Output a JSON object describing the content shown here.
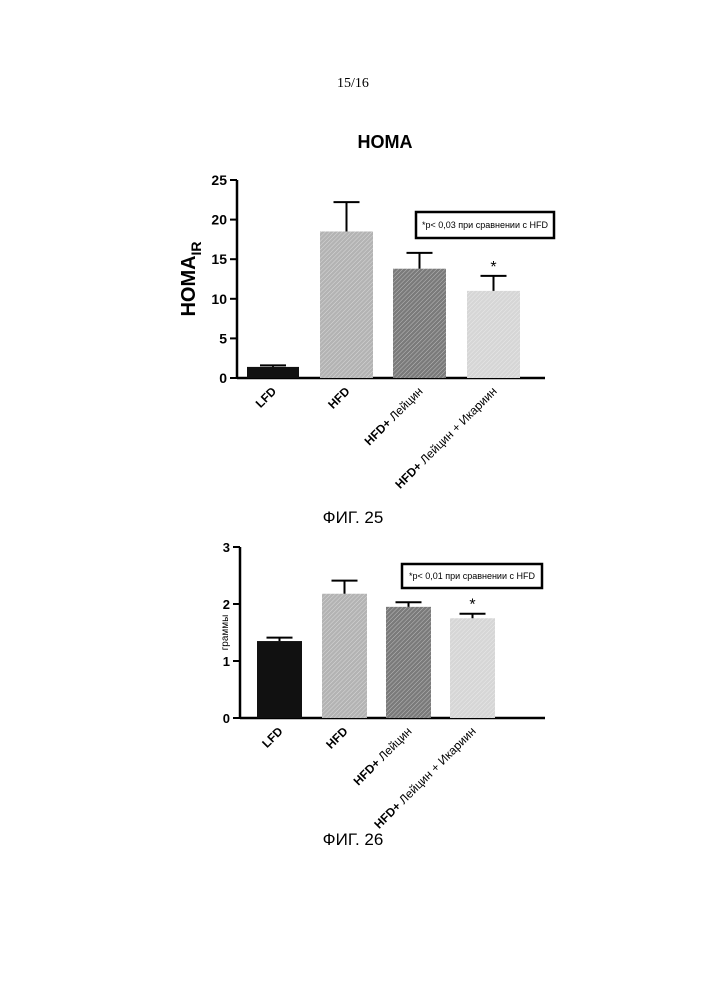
{
  "page_number": "15/16",
  "chart_data": [
    {
      "type": "bar",
      "title": "HOMA",
      "ylabel_main": "HOMA",
      "ylabel_sub": "IR",
      "categories": [
        "LFD",
        "HFD",
        "HFD+ Лейцин",
        "HFD+ Лейцин + Икариин"
      ],
      "values": [
        1.4,
        18.5,
        13.8,
        11.0
      ],
      "errors": [
        0.2,
        3.7,
        2.0,
        1.9
      ],
      "significance": [
        "",
        "",
        "",
        "*"
      ],
      "ylim": [
        0,
        25
      ],
      "yticks": [
        "0",
        "5",
        "10",
        "15",
        "20",
        "25"
      ],
      "legend_note": "*p< 0,03 при сравнении с HFD",
      "caption": "ФИГ. 25",
      "colors": [
        "#111111",
        "#b3b3b3",
        "#7a7a7a",
        "#d6d6d6"
      ]
    },
    {
      "type": "bar",
      "title": "",
      "ylabel_main": "граммы",
      "ylabel_sub": "",
      "categories": [
        "LFD",
        "HFD",
        "HFD+ Лейцин",
        "HFD+ Лейцин + Икариин"
      ],
      "values": [
        1.35,
        2.18,
        1.95,
        1.75
      ],
      "errors": [
        0.06,
        0.23,
        0.08,
        0.08
      ],
      "significance": [
        "",
        "",
        "",
        "*"
      ],
      "ylim": [
        0,
        3
      ],
      "yticks": [
        "0",
        "1",
        "2",
        "3"
      ],
      "legend_note": "*p< 0,01 при сравнении с HFD",
      "caption": "ФИГ. 26",
      "colors": [
        "#111111",
        "#b3b3b3",
        "#7a7a7a",
        "#d6d6d6"
      ]
    }
  ]
}
